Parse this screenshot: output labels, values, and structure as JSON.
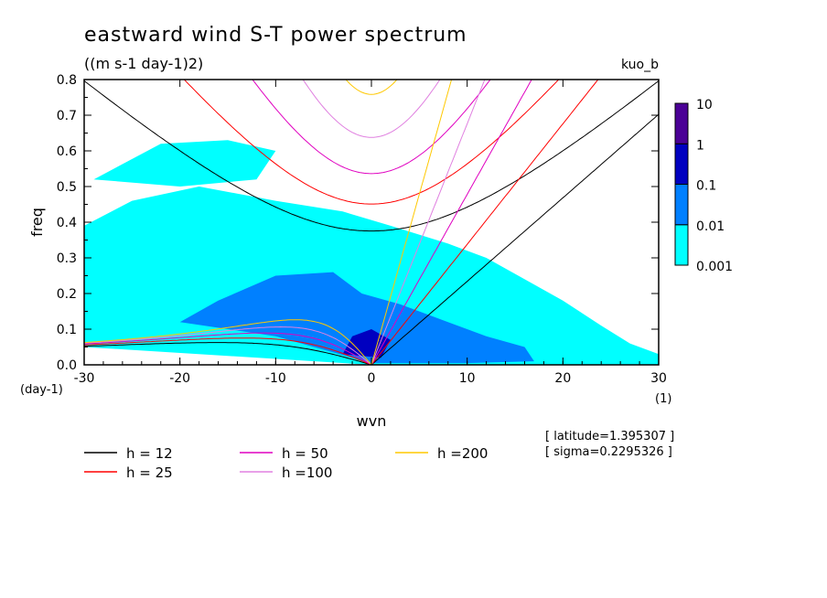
{
  "chart_data": {
    "type": "heatmap",
    "title": "eastward wind S-T power spectrum",
    "subtitle": "((m s-1 day-1)2)",
    "experiment": "kuo_b",
    "xlabel": "wvn",
    "ylabel": "freq",
    "x_unit": "(1)",
    "y_unit": "(day-1)",
    "xlim": [
      -30,
      30
    ],
    "ylim": [
      0,
      0.8
    ],
    "x_ticks": [
      -30,
      -20,
      -10,
      0,
      10,
      20,
      30
    ],
    "x_tick_labels": [
      "-30",
      "-20",
      "-10",
      "0",
      "10",
      "20",
      "30"
    ],
    "y_ticks": [
      0,
      0.1,
      0.2,
      0.3,
      0.4,
      0.5,
      0.6,
      0.7,
      0.8
    ],
    "y_tick_labels": [
      "0.0",
      "0.1",
      "0.2",
      "0.3",
      "0.4",
      "0.5",
      "0.6",
      "0.7",
      "0.8"
    ],
    "colorbar": {
      "levels": [
        0.001,
        0.01,
        0.1,
        1,
        10
      ],
      "labels": [
        "0.001",
        "0.01",
        "0.1",
        "1",
        "10"
      ],
      "colors": [
        "#00ffff",
        "#0080ff",
        "#0000c0",
        "#4b0096"
      ]
    },
    "power_regions": [
      {
        "level": "0.001-0.01",
        "color": "#00ffff",
        "polygon": [
          [
            -30,
            0.05
          ],
          [
            -30,
            0.39
          ],
          [
            -25,
            0.46
          ],
          [
            -18,
            0.5
          ],
          [
            -10,
            0.46
          ],
          [
            -3,
            0.43
          ],
          [
            2,
            0.39
          ],
          [
            8,
            0.34
          ],
          [
            12,
            0.3
          ],
          [
            16,
            0.24
          ],
          [
            20,
            0.18
          ],
          [
            24,
            0.11
          ],
          [
            27,
            0.06
          ],
          [
            30,
            0.03
          ],
          [
            30,
            0
          ],
          [
            0,
            0
          ],
          [
            -30,
            0.05
          ]
        ]
      },
      {
        "level": "0.001-0.01",
        "color": "#00ffff",
        "polygon": [
          [
            -29,
            0.52
          ],
          [
            -22,
            0.62
          ],
          [
            -15,
            0.63
          ],
          [
            -10,
            0.6
          ],
          [
            -12,
            0.52
          ],
          [
            -20,
            0.5
          ],
          [
            -29,
            0.52
          ]
        ]
      },
      {
        "level": "0.01-0.1",
        "color": "#0080ff",
        "polygon": [
          [
            -20,
            0.12
          ],
          [
            -16,
            0.18
          ],
          [
            -10,
            0.25
          ],
          [
            -4,
            0.26
          ],
          [
            -1,
            0.2
          ],
          [
            3,
            0.17
          ],
          [
            8,
            0.12
          ],
          [
            12,
            0.08
          ],
          [
            16,
            0.05
          ],
          [
            17,
            0.01
          ],
          [
            10,
            0.005
          ],
          [
            0,
            0.005
          ],
          [
            -10,
            0.08
          ],
          [
            -20,
            0.12
          ]
        ]
      },
      {
        "level": "0.1-1",
        "color": "#0000c0",
        "polygon": [
          [
            -3,
            0.03
          ],
          [
            -2,
            0.08
          ],
          [
            0,
            0.1
          ],
          [
            2,
            0.07
          ],
          [
            1,
            0.02
          ],
          [
            -3,
            0.03
          ]
        ]
      }
    ],
    "dispersion_curves": [
      {
        "name": "h = 12",
        "h": 12,
        "color": "#000000"
      },
      {
        "name": "h = 25",
        "h": 25,
        "color": "#ff0000"
      },
      {
        "name": "h = 50",
        "h": 50,
        "color": "#e000c0"
      },
      {
        "name": "h =100",
        "h": 100,
        "color": "#e080e0"
      },
      {
        "name": "h =200",
        "h": 200,
        "color": "#ffc800"
      }
    ],
    "annotations": [
      "[ latitude=1.395307 ]",
      "[ sigma=0.2295326 ]"
    ]
  }
}
